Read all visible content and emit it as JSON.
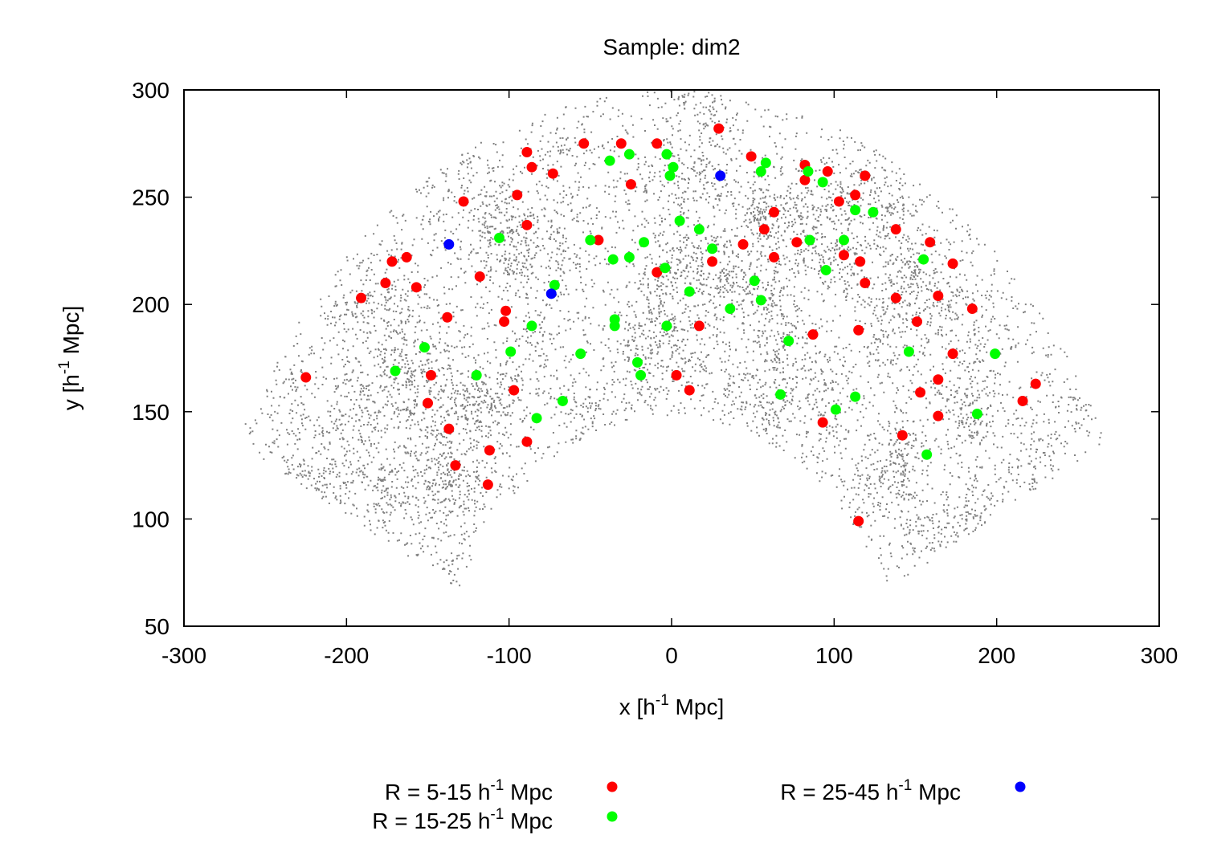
{
  "chart_data": {
    "type": "scatter",
    "title": "Sample: dim2",
    "xlabel": {
      "pre": "x [h",
      "sup": "-1",
      "post": " Mpc]"
    },
    "ylabel": {
      "pre": "y [h",
      "sup": "-1",
      "post": " Mpc]"
    },
    "xlim": [
      -300,
      300
    ],
    "ylim": [
      50,
      300
    ],
    "xticks": [
      -300,
      -200,
      -100,
      0,
      100,
      200,
      300
    ],
    "yticks": [
      50,
      100,
      150,
      200,
      250,
      300
    ],
    "xtick_labels": [
      "-300",
      "-200",
      "-100",
      "0",
      "100",
      "200",
      "300"
    ],
    "ytick_labels": [
      "50",
      "100",
      "150",
      "200",
      "250",
      "300"
    ],
    "background": {
      "name": "galaxies",
      "color": "#808080",
      "distribution": "wedge",
      "r_range": [
        148,
        300
      ],
      "angle_range_deg": [
        27,
        153
      ]
    },
    "series": [
      {
        "name": "R = 5-15",
        "label": {
          "pre": "R = 5-15 h",
          "sup": "-1",
          "post": " Mpc"
        },
        "color": "#ff0000",
        "points": [
          [
            -225,
            166
          ],
          [
            -191,
            203
          ],
          [
            -176,
            210
          ],
          [
            -172,
            220
          ],
          [
            -163,
            222
          ],
          [
            -157,
            208
          ],
          [
            -148,
            167
          ],
          [
            -150,
            154
          ],
          [
            -138,
            194
          ],
          [
            -137,
            142
          ],
          [
            -133,
            125
          ],
          [
            -128,
            248
          ],
          [
            -118,
            213
          ],
          [
            -112,
            132
          ],
          [
            -113,
            116
          ],
          [
            -102,
            197
          ],
          [
            -103,
            192
          ],
          [
            -97,
            160
          ],
          [
            -95,
            251
          ],
          [
            -89,
            271
          ],
          [
            -86,
            264
          ],
          [
            -89,
            237
          ],
          [
            -89,
            136
          ],
          [
            -73,
            261
          ],
          [
            -54,
            275
          ],
          [
            -45,
            230
          ],
          [
            -31,
            275
          ],
          [
            -25,
            256
          ],
          [
            -9,
            275
          ],
          [
            -9,
            215
          ],
          [
            3,
            167
          ],
          [
            11,
            160
          ],
          [
            17,
            190
          ],
          [
            25,
            220
          ],
          [
            29,
            282
          ],
          [
            44,
            228
          ],
          [
            49,
            269
          ],
          [
            57,
            235
          ],
          [
            63,
            243
          ],
          [
            63,
            222
          ],
          [
            77,
            229
          ],
          [
            82,
            258
          ],
          [
            82,
            265
          ],
          [
            87,
            186
          ],
          [
            93,
            145
          ],
          [
            96,
            262
          ],
          [
            103,
            248
          ],
          [
            106,
            223
          ],
          [
            113,
            251
          ],
          [
            115,
            188
          ],
          [
            116,
            220
          ],
          [
            119,
            260
          ],
          [
            119,
            210
          ],
          [
            115,
            99
          ],
          [
            138,
            203
          ],
          [
            138,
            235
          ],
          [
            142,
            139
          ],
          [
            151,
            192
          ],
          [
            153,
            159
          ],
          [
            159,
            229
          ],
          [
            164,
            204
          ],
          [
            164,
            165
          ],
          [
            164,
            148
          ],
          [
            173,
            177
          ],
          [
            173,
            219
          ],
          [
            185,
            198
          ],
          [
            216,
            155
          ],
          [
            224,
            163
          ]
        ]
      },
      {
        "name": "R = 15-25",
        "label": {
          "pre": "R = 15-25 h",
          "sup": "-1",
          "post": " Mpc"
        },
        "color": "#00ff00",
        "points": [
          [
            -170,
            169
          ],
          [
            -152,
            180
          ],
          [
            -120,
            167
          ],
          [
            -106,
            231
          ],
          [
            -99,
            178
          ],
          [
            -86,
            190
          ],
          [
            -83,
            147
          ],
          [
            -72,
            209
          ],
          [
            -67,
            155
          ],
          [
            -56,
            177
          ],
          [
            -50,
            230
          ],
          [
            -38,
            267
          ],
          [
            -36,
            221
          ],
          [
            -35,
            193
          ],
          [
            -35,
            190
          ],
          [
            -26,
            270
          ],
          [
            -26,
            222
          ],
          [
            -21,
            173
          ],
          [
            -19,
            167
          ],
          [
            -17,
            229
          ],
          [
            -3,
            270
          ],
          [
            -4,
            217
          ],
          [
            -3,
            190
          ],
          [
            -1,
            260
          ],
          [
            1,
            264
          ],
          [
            5,
            239
          ],
          [
            11,
            206
          ],
          [
            17,
            235
          ],
          [
            25,
            226
          ],
          [
            36,
            198
          ],
          [
            51,
            211
          ],
          [
            55,
            262
          ],
          [
            55,
            202
          ],
          [
            58,
            266
          ],
          [
            67,
            158
          ],
          [
            72,
            183
          ],
          [
            84,
            262
          ],
          [
            85,
            230
          ],
          [
            93,
            257
          ],
          [
            95,
            216
          ],
          [
            101,
            151
          ],
          [
            106,
            230
          ],
          [
            113,
            244
          ],
          [
            113,
            157
          ],
          [
            124,
            243
          ],
          [
            146,
            178
          ],
          [
            155,
            221
          ],
          [
            157,
            130
          ],
          [
            188,
            149
          ],
          [
            199,
            177
          ]
        ]
      },
      {
        "name": "R = 25-45",
        "label": {
          "pre": "R = 25-45 h",
          "sup": "-1",
          "post": " Mpc"
        },
        "color": "#0000ff",
        "points": [
          [
            -137,
            228
          ],
          [
            -74,
            205
          ],
          [
            30,
            260
          ]
        ]
      }
    ]
  }
}
